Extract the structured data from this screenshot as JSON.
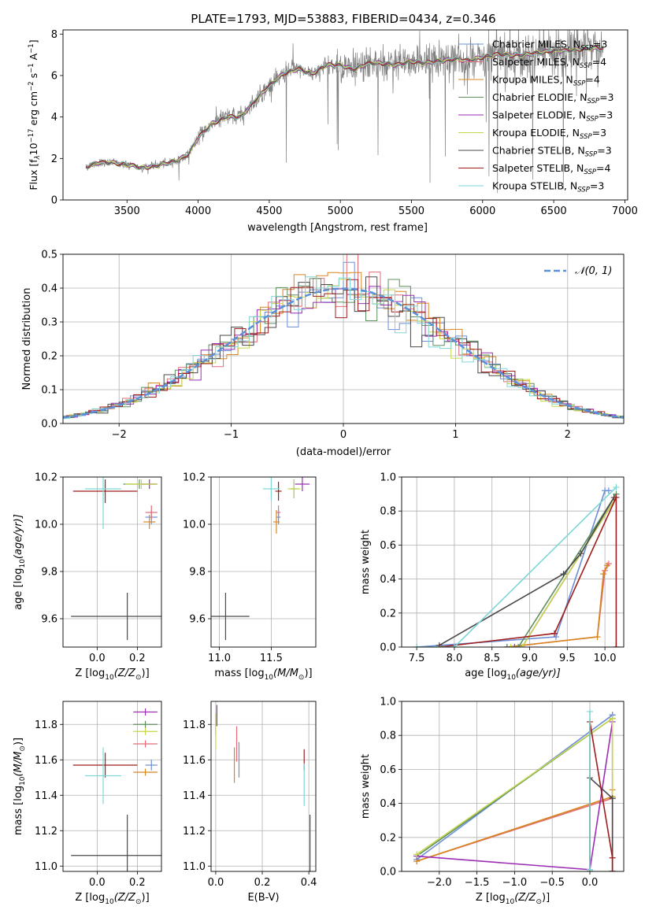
{
  "title": "PLATE=1793, MJD=53883, FIBERID=0434, z=0.346",
  "colors": {
    "Chabrier MILES": "#6b8fd6",
    "Salpeter MILES": "#e36c76",
    "Kroupa MILES": "#d8861e",
    "Chabrier ELODIE": "#5e8f5e",
    "Salpeter ELODIE": "#9b2eb5",
    "Kroupa ELODIE": "#c6d64a",
    "Chabrier STELIB": "#4a4a4a",
    "Salpeter STELIB": "#a01c1c",
    "Kroupa STELIB": "#7fd6d6",
    "data": "#7f7f7f",
    "gaussian": "#5a8fd9"
  },
  "chart_data": [
    {
      "id": "spectrum",
      "type": "line",
      "title": "PLATE=1793, MJD=53883, FIBERID=0434, z=0.346",
      "xlabel": "wavelength [Angstrom, rest frame]",
      "ylabel_main": "Flux [f",
      "ylabel_sub": "λ",
      "ylabel_mid": "10",
      "ylabel_sup1": "−17",
      "ylabel_mid2": " erg cm",
      "ylabel_sup2": "−2",
      "ylabel_mid3": " s",
      "ylabel_sup3": "−1",
      "ylabel_mid4": " A",
      "ylabel_sup4": "−1",
      "ylabel_end": "]",
      "xlim": [
        3050,
        7020
      ],
      "ylim": [
        0,
        8.2
      ],
      "xticks": [
        3500,
        4000,
        4500,
        5000,
        5500,
        6000,
        6500,
        7000
      ],
      "yticks": [
        0,
        2,
        4,
        6,
        8
      ],
      "continuum": [
        [
          3210,
          1.6
        ],
        [
          3300,
          1.8
        ],
        [
          3400,
          1.8
        ],
        [
          3500,
          1.7
        ],
        [
          3600,
          1.55
        ],
        [
          3700,
          1.65
        ],
        [
          3800,
          1.8
        ],
        [
          3850,
          1.9
        ],
        [
          3930,
          2.2
        ],
        [
          4000,
          3.0
        ],
        [
          4100,
          3.7
        ],
        [
          4200,
          4.0
        ],
        [
          4300,
          4.0
        ],
        [
          4400,
          4.8
        ],
        [
          4500,
          5.5
        ],
        [
          4600,
          6.1
        ],
        [
          4700,
          6.3
        ],
        [
          4800,
          6.1
        ],
        [
          4900,
          6.5
        ],
        [
          5000,
          6.5
        ],
        [
          5100,
          6.3
        ],
        [
          5200,
          6.6
        ],
        [
          5300,
          6.6
        ],
        [
          5400,
          6.5
        ],
        [
          5500,
          6.7
        ],
        [
          5600,
          6.6
        ],
        [
          5700,
          6.7
        ],
        [
          5800,
          6.8
        ],
        [
          5900,
          6.7
        ],
        [
          6000,
          6.9
        ],
        [
          6100,
          7.0
        ],
        [
          6200,
          7.0
        ],
        [
          6300,
          7.0
        ],
        [
          6400,
          7.1
        ],
        [
          6500,
          7.2
        ],
        [
          6600,
          7.2
        ],
        [
          6700,
          7.3
        ],
        [
          6850,
          7.3
        ]
      ],
      "legend": [
        {
          "name": "Chabrier MILES",
          "n": "3"
        },
        {
          "name": "Salpeter MILES",
          "n": "4"
        },
        {
          "name": "Kroupa MILES",
          "n": "4"
        },
        {
          "name": "Chabrier ELODIE",
          "n": "3"
        },
        {
          "name": "Salpeter ELODIE",
          "n": "3"
        },
        {
          "name": "Kroupa ELODIE",
          "n": "3"
        },
        {
          "name": "Chabrier STELIB",
          "n": "3"
        },
        {
          "name": "Salpeter STELIB",
          "n": "4"
        },
        {
          "name": "Kroupa STELIB",
          "n": "3"
        }
      ],
      "legend_prefix": "N",
      "legend_sub": "SSP"
    },
    {
      "id": "residuals",
      "type": "line",
      "xlabel": "(data-model)/error",
      "ylabel": "Normed distribution",
      "xlim": [
        -2.5,
        2.5
      ],
      "ylim": [
        0,
        0.5
      ],
      "xticks": [
        -2,
        -1,
        0,
        1,
        2
      ],
      "xticklabels": [
        "−2",
        "−1",
        "0",
        "1",
        "2"
      ],
      "yticks": [
        0,
        0.1,
        0.2,
        0.3,
        0.4,
        0.5
      ],
      "yticklabels": [
        "0.0",
        "0.1",
        "0.2",
        "0.3",
        "0.4",
        "0.5"
      ],
      "bin_width": 0.1,
      "legend_label": "𝒩(0, 1)",
      "legend_placement": "top-right"
    },
    {
      "id": "age_vs_Z",
      "type": "scatter",
      "xlabel": "Z [log",
      "xlabel_sub": "10",
      "xlabel_rest": "(Z/Z",
      "xlabel_sub2": "⊙",
      "xlabel_end": ")]",
      "ylabel": "age  [log",
      "ylabel_sub": "10",
      "ylabel_rest": "(age/yr)]",
      "xlim": [
        -0.17,
        0.32
      ],
      "ylim": [
        9.48,
        10.2
      ],
      "xticks": [
        0.0,
        0.2
      ],
      "xticklabels": [
        "0.0",
        "0.2"
      ],
      "yticks": [
        9.6,
        9.8,
        10.0,
        10.2
      ],
      "yticklabels": [
        "9.6",
        "9.8",
        "10.0",
        "10.2"
      ],
      "points": [
        {
          "s": "Chabrier MILES",
          "x": 0.27,
          "y": 10.03,
          "ex": 0.03,
          "ey": 0.03
        },
        {
          "s": "Salpeter MILES",
          "x": 0.27,
          "y": 10.05,
          "ex": 0.03,
          "ey": 0.03
        },
        {
          "s": "Kroupa MILES",
          "x": 0.26,
          "y": 10.01,
          "ex": 0.03,
          "ey": 0.03
        },
        {
          "s": "Chabrier ELODIE",
          "x": 0.21,
          "y": 10.17,
          "ex": 0.08,
          "ey": 0.02
        },
        {
          "s": "Salpeter ELODIE",
          "x": 0.26,
          "y": 10.17,
          "ex": 0.04,
          "ey": 0.02
        },
        {
          "s": "Kroupa ELODIE",
          "x": 0.22,
          "y": 10.17,
          "ex": 0.08,
          "ey": 0.02
        },
        {
          "s": "Chabrier STELIB",
          "x": 0.15,
          "y": 9.61,
          "ex": 0.28,
          "ey": 0.1
        },
        {
          "s": "Salpeter STELIB",
          "x": 0.04,
          "y": 10.14,
          "ex": 0.16,
          "ey": 0.05
        },
        {
          "s": "Kroupa STELIB",
          "x": 0.03,
          "y": 10.15,
          "ex": 0.09,
          "ey": 0.17
        }
      ]
    },
    {
      "id": "age_vs_mass",
      "type": "scatter",
      "xlabel": "mass [log",
      "xlabel_sub": "10",
      "xlabel_rest": "(M/M",
      "xlabel_sub2": "⊙",
      "xlabel_end": ")]",
      "xlim": [
        10.92,
        11.93
      ],
      "ylim": [
        9.48,
        10.2
      ],
      "xticks": [
        11.0,
        11.5
      ],
      "xticklabels": [
        "11.0",
        "11.5"
      ],
      "yticks": [
        9.6,
        9.8,
        10.0,
        10.2
      ],
      "yticklabels": [
        "9.6",
        "9.8",
        "10.0",
        "10.2"
      ],
      "points": [
        {
          "s": "Chabrier MILES",
          "x": 11.57,
          "y": 10.03,
          "ex": 0.02,
          "ey": 0.03
        },
        {
          "s": "Salpeter MILES",
          "x": 11.57,
          "y": 10.05,
          "ex": 0.02,
          "ey": 0.03
        },
        {
          "s": "Kroupa MILES",
          "x": 11.55,
          "y": 10.01,
          "ex": 0.03,
          "ey": 0.05
        },
        {
          "s": "Chabrier ELODIE",
          "x": 11.72,
          "y": 10.15,
          "ex": 0.03,
          "ey": 0.04
        },
        {
          "s": "Salpeter ELODIE",
          "x": 11.8,
          "y": 10.17,
          "ex": 0.07,
          "ey": 0.03
        },
        {
          "s": "Kroupa ELODIE",
          "x": 11.72,
          "y": 10.15,
          "ex": 0.06,
          "ey": 0.04
        },
        {
          "s": "Chabrier STELIB",
          "x": 11.06,
          "y": 9.61,
          "ex": 0.23,
          "ey": 0.1
        },
        {
          "s": "Salpeter STELIB",
          "x": 11.57,
          "y": 10.14,
          "ex": 0.03,
          "ey": 0.04
        },
        {
          "s": "Kroupa STELIB",
          "x": 11.5,
          "y": 10.15,
          "ex": 0.08,
          "ey": 0.05
        }
      ]
    },
    {
      "id": "cumul_age",
      "type": "line",
      "xlabel": "age  [log",
      "xlabel_sub": "10",
      "xlabel_rest": "(age/yr)]",
      "ylabel": "mass weight",
      "xlim": [
        7.3,
        10.25
      ],
      "ylim": [
        0,
        1
      ],
      "xticks": [
        7.5,
        8.0,
        8.5,
        9.0,
        9.5,
        10.0
      ],
      "xticklabels": [
        "7.5",
        "8.0",
        "8.5",
        "9.0",
        "9.5",
        "10.0"
      ],
      "yticks": [
        0,
        0.2,
        0.4,
        0.6,
        0.8,
        1.0
      ],
      "yticklabels": [
        "0.0",
        "0.2",
        "0.4",
        "0.6",
        "0.8",
        "1.0"
      ],
      "series": [
        {
          "s": "Chabrier MILES",
          "x": [
            7.5,
            9.35,
            10.0,
            10.05
          ],
          "y": [
            0.0,
            0.06,
            0.92,
            0.92
          ]
        },
        {
          "s": "Salpeter MILES",
          "x": [
            8.7,
            9.9,
            10.0,
            10.05
          ],
          "y": [
            0.0,
            0.06,
            0.45,
            0.49
          ]
        },
        {
          "s": "Kroupa MILES",
          "x": [
            8.7,
            9.9,
            9.98,
            10.03
          ],
          "y": [
            0.0,
            0.06,
            0.43,
            0.48
          ]
        },
        {
          "s": "Chabrier ELODIE",
          "x": [
            8.7,
            8.85,
            10.15
          ],
          "y": [
            0.0,
            0.0,
            0.9
          ]
        },
        {
          "s": "Salpeter ELODIE",
          "x": [
            8.8,
            8.9,
            10.15
          ],
          "y": [
            0.0,
            0.0,
            0.88
          ]
        },
        {
          "s": "Kroupa ELODIE",
          "x": [
            8.75,
            8.9,
            10.15
          ],
          "y": [
            0.0,
            0.0,
            0.88
          ]
        },
        {
          "s": "Chabrier STELIB",
          "x": [
            7.8,
            9.45,
            9.68,
            10.12
          ],
          "y": [
            0.01,
            0.43,
            0.55,
            0.88
          ]
        },
        {
          "s": "Salpeter STELIB",
          "x": [
            7.8,
            9.33,
            10.15,
            10.15
          ],
          "y": [
            0.0,
            0.08,
            0.88,
            0.0
          ]
        },
        {
          "s": "Kroupa STELIB",
          "x": [
            7.5,
            8.0,
            10.15
          ],
          "y": [
            0.0,
            0.0,
            0.94
          ]
        }
      ]
    },
    {
      "id": "mass_vs_Z",
      "type": "scatter",
      "xlabel": "Z [log",
      "xlabel_sub": "10",
      "xlabel_rest": "(Z/Z",
      "xlabel_sub2": "⊙",
      "xlabel_end": ")]",
      "ylabel": "mass [log",
      "ylabel_sub": "10",
      "ylabel_rest": "(M/M",
      "ylabel_sub2": "⊙",
      "ylabel_end": ")]",
      "xlim": [
        -0.17,
        0.32
      ],
      "ylim": [
        10.97,
        11.93
      ],
      "xticks": [
        0.0,
        0.2
      ],
      "xticklabels": [
        "0.0",
        "0.2"
      ],
      "yticks": [
        11.0,
        11.2,
        11.4,
        11.6,
        11.8
      ],
      "yticklabels": [
        "11.0",
        "11.2",
        "11.4",
        "11.6",
        "11.8"
      ],
      "points": [
        {
          "s": "Chabrier MILES",
          "x": 0.27,
          "y": 11.57,
          "ex": 0.03,
          "ey": 0.03
        },
        {
          "s": "Salpeter MILES",
          "x": 0.24,
          "y": 11.69,
          "ex": 0.06,
          "ey": 0.02
        },
        {
          "s": "Kroupa MILES",
          "x": 0.24,
          "y": 11.53,
          "ex": 0.06,
          "ey": 0.02
        },
        {
          "s": "Chabrier ELODIE",
          "x": 0.24,
          "y": 11.8,
          "ex": 0.06,
          "ey": 0.02
        },
        {
          "s": "Salpeter ELODIE",
          "x": 0.24,
          "y": 11.87,
          "ex": 0.06,
          "ey": 0.02
        },
        {
          "s": "Kroupa ELODIE",
          "x": 0.24,
          "y": 11.76,
          "ex": 0.06,
          "ey": 0.02
        },
        {
          "s": "Chabrier STELIB",
          "x": 0.15,
          "y": 11.06,
          "ex": 0.28,
          "ey": 0.23
        },
        {
          "s": "Salpeter STELIB",
          "x": 0.04,
          "y": 11.57,
          "ex": 0.16,
          "ey": 0.07
        },
        {
          "s": "Kroupa STELIB",
          "x": 0.03,
          "y": 11.51,
          "ex": 0.09,
          "ey": 0.16
        }
      ]
    },
    {
      "id": "mass_vs_ebv",
      "type": "scatter",
      "xlabel": "E(B-V)",
      "xlim": [
        -0.02,
        0.43
      ],
      "ylim": [
        10.97,
        11.93
      ],
      "xticks": [
        0.0,
        0.2,
        0.4
      ],
      "xticklabels": [
        "0.0",
        "0.2",
        "0.4"
      ],
      "yticks": [
        11.0,
        11.2,
        11.4,
        11.6,
        11.8
      ],
      "yticklabels": [
        "11.0",
        "11.2",
        "11.4",
        "11.6",
        "11.8"
      ],
      "points": [
        {
          "s": "Chabrier MILES",
          "x": 0.1,
          "y": 11.6,
          "ex": 0.0,
          "ey": 0.1
        },
        {
          "s": "Salpeter MILES",
          "x": 0.09,
          "y": 11.69,
          "ex": 0.0,
          "ey": 0.1
        },
        {
          "s": "Kroupa MILES",
          "x": 0.08,
          "y": 11.57,
          "ex": 0.0,
          "ey": 0.1
        },
        {
          "s": "Chabrier ELODIE",
          "x": 0.0,
          "y": 11.8,
          "ex": 0.0,
          "ey": 0.06
        },
        {
          "s": "Salpeter ELODIE",
          "x": 0.005,
          "y": 11.85,
          "ex": 0.0,
          "ey": 0.06
        },
        {
          "s": "Kroupa ELODIE",
          "x": 0.0,
          "y": 11.76,
          "ex": 0.0,
          "ey": 0.1
        },
        {
          "s": "Chabrier STELIB",
          "x": 0.405,
          "y": 11.06,
          "ex": 0.0,
          "ey": 0.23
        },
        {
          "s": "Salpeter STELIB",
          "x": 0.38,
          "y": 11.6,
          "ex": 0.0,
          "ey": 0.06
        },
        {
          "s": "Kroupa STELIB",
          "x": 0.38,
          "y": 11.46,
          "ex": 0.0,
          "ey": 0.12
        }
      ]
    },
    {
      "id": "cumul_Z",
      "type": "line",
      "xlabel": "Z [log",
      "xlabel_sub": "10",
      "xlabel_rest": "(Z/Z",
      "xlabel_sub2": "⊙",
      "xlabel_end": ")]",
      "ylabel": "mass weight",
      "xlim": [
        -2.5,
        0.45
      ],
      "ylim": [
        0,
        1
      ],
      "xticks": [
        -2.0,
        -1.5,
        -1.0,
        -0.5,
        0.0
      ],
      "xticklabels": [
        "−2.0",
        "−1.5",
        "−1.0",
        "−0.5",
        "0.0"
      ],
      "yticks": [
        0,
        0.2,
        0.4,
        0.6,
        0.8,
        1.0
      ],
      "yticklabels": [
        "0.0",
        "0.2",
        "0.4",
        "0.6",
        "0.8",
        "1.0"
      ],
      "series": [
        {
          "s": "Chabrier MILES",
          "x": [
            -2.3,
            0.3,
            0.3
          ],
          "y": [
            0.07,
            0.92,
            0.92
          ]
        },
        {
          "s": "Salpeter MILES",
          "x": [
            -2.3,
            0.3,
            0.3
          ],
          "y": [
            0.06,
            0.43,
            0.43
          ]
        },
        {
          "s": "Kroupa MILES",
          "x": [
            -2.3,
            0.3,
            0.3
          ],
          "y": [
            0.06,
            0.44,
            0.48
          ]
        },
        {
          "s": "Chabrier ELODIE",
          "x": [
            -2.3,
            0.3,
            0.3
          ],
          "y": [
            0.09,
            0.9,
            0.9
          ]
        },
        {
          "s": "Salpeter ELODIE",
          "x": [
            -2.3,
            0.0,
            0.3,
            0.3
          ],
          "y": [
            0.09,
            0.01,
            0.88,
            0.0
          ]
        },
        {
          "s": "Kroupa ELODIE",
          "x": [
            -2.3,
            0.3,
            0.3
          ],
          "y": [
            0.1,
            0.9,
            0.0
          ]
        },
        {
          "s": "Chabrier STELIB",
          "x": [
            0.0,
            0.0,
            0.3,
            0.3
          ],
          "y": [
            0.0,
            0.55,
            0.43,
            0.0
          ]
        },
        {
          "s": "Salpeter STELIB",
          "x": [
            0.0,
            0.0,
            0.3,
            0.3
          ],
          "y": [
            0.0,
            0.88,
            0.08,
            0.0
          ]
        },
        {
          "s": "Kroupa STELIB",
          "x": [
            0.0,
            0.0,
            0.0
          ],
          "y": [
            0.0,
            0.94,
            0.01
          ]
        }
      ]
    }
  ]
}
